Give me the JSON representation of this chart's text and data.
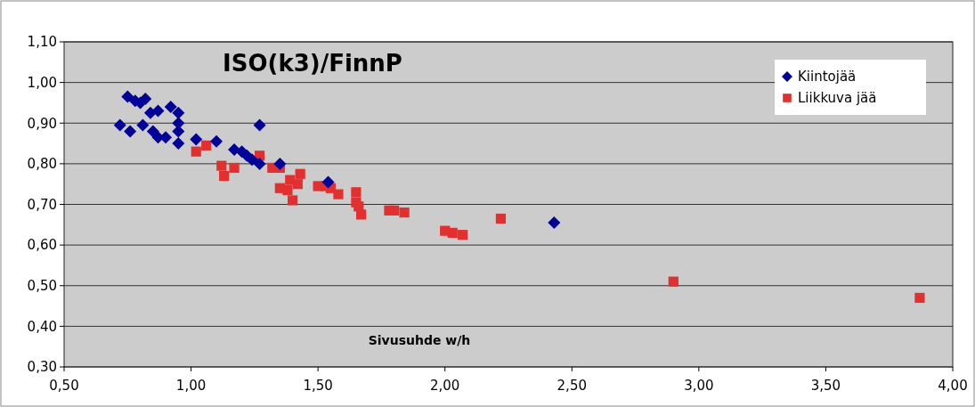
{
  "chart_data": {
    "type": "scatter",
    "title": "ISO(k3)/FinnP",
    "xlabel": "Sivusuhde w/h",
    "xlim": [
      0.5,
      4.0
    ],
    "xticks": [
      {
        "value": 0.5,
        "label": "0,50"
      },
      {
        "value": 1.0,
        "label": "1,00"
      },
      {
        "value": 1.5,
        "label": "1,50"
      },
      {
        "value": 2.0,
        "label": "2,00"
      },
      {
        "value": 2.5,
        "label": "2,50"
      },
      {
        "value": 3.0,
        "label": "3,00"
      },
      {
        "value": 3.5,
        "label": "3,50"
      },
      {
        "value": 4.0,
        "label": "4,00"
      }
    ],
    "ylim": [
      0.3,
      1.1
    ],
    "yticks": [
      {
        "value": 0.3,
        "label": "0,30"
      },
      {
        "value": 0.4,
        "label": "0,40"
      },
      {
        "value": 0.5,
        "label": "0,50"
      },
      {
        "value": 0.6,
        "label": "0,60"
      },
      {
        "value": 0.7,
        "label": "0,70"
      },
      {
        "value": 0.8,
        "label": "0,80"
      },
      {
        "value": 0.9,
        "label": "0,90"
      },
      {
        "value": 1.0,
        "label": "1,00"
      },
      {
        "value": 1.1,
        "label": "1,10"
      }
    ],
    "grid": "y",
    "legend": "top right",
    "series": [
      {
        "name": "Kiintojää",
        "color": "#000099",
        "marker": "diamond",
        "x": [
          0.72,
          0.75,
          0.76,
          0.78,
          0.8,
          0.82,
          0.81,
          0.85,
          0.84,
          0.87,
          0.87,
          0.9,
          0.92,
          0.95,
          0.95,
          0.95,
          0.95,
          1.02,
          1.1,
          1.17,
          1.2,
          1.22,
          1.24,
          1.27,
          1.27,
          1.35,
          1.54,
          2.43
        ],
        "values": [
          0.895,
          0.965,
          0.88,
          0.955,
          0.95,
          0.96,
          0.895,
          0.88,
          0.925,
          0.93,
          0.865,
          0.865,
          0.94,
          0.925,
          0.9,
          0.88,
          0.85,
          0.86,
          0.855,
          0.835,
          0.83,
          0.82,
          0.81,
          0.895,
          0.8,
          0.8,
          0.755,
          0.655
        ]
      },
      {
        "name": "Liikkuva jää",
        "color": "#e03030",
        "marker": "square",
        "x": [
          1.02,
          1.06,
          1.12,
          1.13,
          1.17,
          1.27,
          1.32,
          1.35,
          1.35,
          1.38,
          1.4,
          1.39,
          1.42,
          1.43,
          1.5,
          1.53,
          1.55,
          1.58,
          1.65,
          1.65,
          1.66,
          1.67,
          1.78,
          1.8,
          1.84,
          2.0,
          2.03,
          2.07,
          2.22,
          2.9,
          3.87
        ],
        "values": [
          0.83,
          0.845,
          0.795,
          0.77,
          0.79,
          0.82,
          0.79,
          0.79,
          0.74,
          0.735,
          0.71,
          0.76,
          0.75,
          0.775,
          0.745,
          0.745,
          0.74,
          0.725,
          0.73,
          0.705,
          0.695,
          0.675,
          0.685,
          0.685,
          0.68,
          0.635,
          0.63,
          0.625,
          0.665,
          0.51,
          0.47
        ]
      }
    ]
  }
}
